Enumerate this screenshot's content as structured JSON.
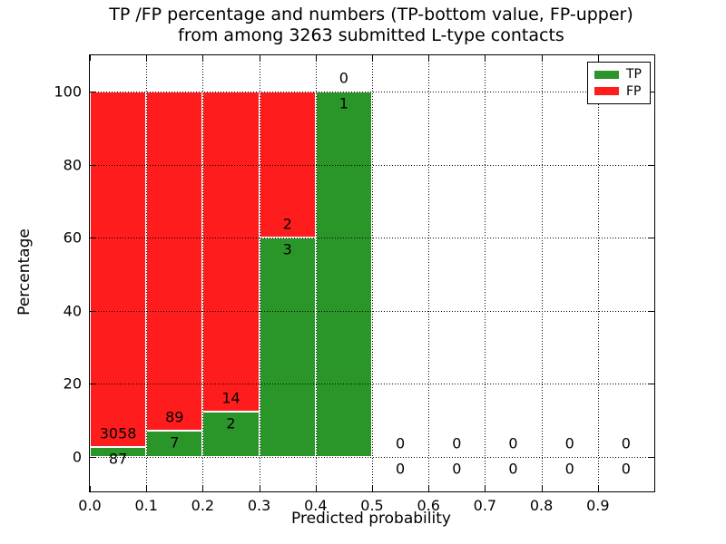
{
  "chart_data": {
    "type": "bar",
    "stacked": true,
    "title_line1": "TP /FP percentage and numbers (TP-bottom value, FP-upper)",
    "title_line2": "from among 3263 submitted L-type contacts",
    "xlabel": "Predicted probability",
    "ylabel": "Percentage",
    "bin_edges": [
      0.0,
      0.1,
      0.2,
      0.3,
      0.4,
      0.5,
      0.6,
      0.7,
      0.8,
      0.9,
      1.0
    ],
    "xtick_labels": [
      "0.0",
      "0.1",
      "0.2",
      "0.3",
      "0.4",
      "0.5",
      "0.6",
      "0.7",
      "0.8",
      "0.9"
    ],
    "ytick_values": [
      0,
      20,
      40,
      60,
      80,
      100
    ],
    "xlim": [
      0.0,
      1.0
    ],
    "ylim": [
      -9.4,
      110.2
    ],
    "grid": true,
    "legend_position": "upper right",
    "series": [
      {
        "name": "TP",
        "color": "#2a962a",
        "counts": [
          87,
          7,
          2,
          3,
          1,
          0,
          0,
          0,
          0,
          0
        ]
      },
      {
        "name": "FP",
        "color": "#ff1c1c",
        "counts": [
          3058,
          89,
          14,
          2,
          0,
          0,
          0,
          0,
          0,
          0
        ]
      }
    ],
    "percent_tp_per_bin": [
      2.77,
      7.29,
      12.5,
      60.0,
      100.0,
      0,
      0,
      0,
      0,
      0
    ]
  }
}
